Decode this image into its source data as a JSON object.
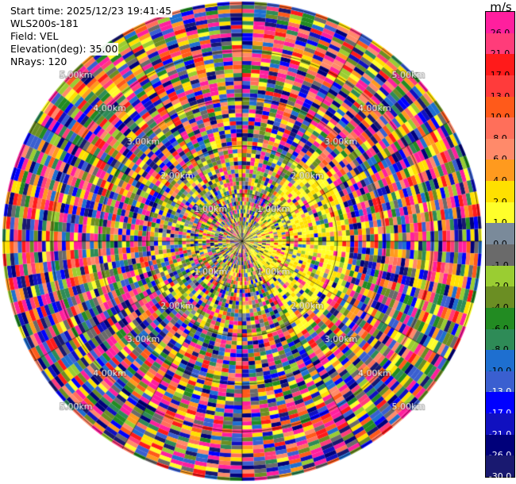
{
  "info": {
    "start_time": "Start time: 2025/12/23 19:41:45",
    "station": "WLS200s-181",
    "field": "Field: VEL",
    "elevation": "Elevation(deg): 35.00",
    "nrays": "NRays: 120"
  },
  "colorbar": {
    "unit": "m/s",
    "labels": [
      "26.0",
      "21.0",
      "17.0",
      "13.0",
      "10.0",
      "8.0",
      "6.0",
      "4.0",
      "2.0",
      "1.0",
      "0.0",
      "-1.0",
      "-2.0",
      "-4.0",
      "-6.0",
      "-8.0",
      "-10.0",
      "-13.0",
      "-17.0",
      "-21.0",
      "-26.0",
      "-30.0"
    ],
    "colors": [
      "#ff1f9e",
      "#ff3c7a",
      "#ff1a1a",
      "#ff3b3b",
      "#ff5a1a",
      "#ff6f5a",
      "#ff8a6a",
      "#ff9a1e",
      "#ffe000",
      "#ffff2a",
      "#7a8a9a",
      "#6a6a6a",
      "#9acd32",
      "#6b8e23",
      "#228b22",
      "#2e8b57",
      "#1e6fd0",
      "#3a5fd0",
      "#0000ff",
      "#1010c0",
      "#00007a",
      "#191970"
    ]
  },
  "chart_data": {
    "type": "heatmap",
    "projection": "polar PPI",
    "field": "VEL",
    "nrays": 120,
    "elevation_deg": 35.0,
    "range_ring_labels": [
      "1.00km",
      "2.00km",
      "3.00km",
      "4.00km",
      "5.00km"
    ],
    "colorscale_ms": [
      -30.0,
      -26.0,
      -21.0,
      -17.0,
      -13.0,
      -10.0,
      -8.0,
      -6.0,
      -4.0,
      -2.0,
      -1.0,
      0.0,
      1.0,
      2.0,
      4.0,
      6.0,
      8.0,
      10.0,
      13.0,
      17.0,
      21.0,
      26.0
    ],
    "description_values": {
      "near_east_sector_velocity_ms": 3.0,
      "far_field": "noise spanning full scale"
    }
  }
}
